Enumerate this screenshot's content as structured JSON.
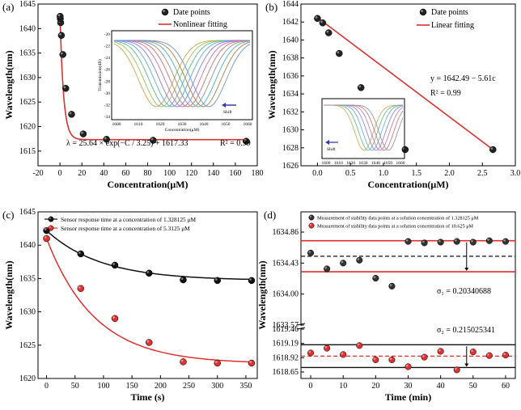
{
  "chart_data": [
    {
      "panel": "(a)",
      "type": "scatter",
      "xlabel": "Concentration(μM)",
      "ylabel": "Wavelength(nm)",
      "xlim": [
        -20,
        180
      ],
      "ylim": [
        1612,
        1645
      ],
      "xticks": [
        "-20",
        "0",
        "20",
        "40",
        "60",
        "80",
        "100",
        "120",
        "140",
        "160",
        "180"
      ],
      "yticks": [
        "1615",
        "1620",
        "1625",
        "1630",
        "1635",
        "1640",
        "1645"
      ],
      "legend": [
        "Date points",
        "Nonlinear fitting"
      ],
      "legend_position": "top-right",
      "series": [
        {
          "name": "Date points",
          "x": [
            0.66,
            1.33,
            2.66,
            5.31,
            10.6,
            21.25,
            42.5,
            85,
            170,
            0.33,
            0.17
          ],
          "y": [
            1641.2,
            1638.6,
            1634.7,
            1627.8,
            1622.5,
            1618.5,
            1617.4,
            1617.2,
            1617.0,
            1642.0,
            1642.5
          ]
        }
      ],
      "fit": {
        "model": "A*exp(-C/t)+y0",
        "A": 25.64,
        "t": 3.25,
        "y0": 1617.33
      },
      "annotations": [
        "λ = 25.64 × exp(−C / 3.25) + 1617.33",
        "R² = 0.99"
      ],
      "inset": {
        "xlabel": "Concentration(μM)",
        "ylabel": "Transmission(dB)",
        "xticks": [
          "1600",
          "1610",
          "1620",
          "1630",
          "1640",
          "1650",
          "1660"
        ],
        "yticks": [
          "-20",
          "-22",
          "-24",
          "-26",
          "-28",
          "-30",
          "-32",
          "-34"
        ],
        "note": "Shift"
      }
    },
    {
      "panel": "(b)",
      "type": "scatter",
      "xlabel": "Concentration(μM)",
      "ylabel": "Wavelength(nm)",
      "xlim": [
        -0.25,
        3.0
      ],
      "ylim": [
        1626,
        1644
      ],
      "xticks": [
        "0.0",
        "0.5",
        "1.0",
        "1.5",
        "2.0",
        "2.5",
        "3.0"
      ],
      "yticks": [
        "1626",
        "1628",
        "1630",
        "1632",
        "1634",
        "1636",
        "1638",
        "1640",
        "1642",
        "1644"
      ],
      "legend": [
        "Date points",
        "Linear fitting"
      ],
      "legend_position": "top-right",
      "series": [
        {
          "name": "Date points",
          "x": [
            0.0,
            0.08,
            0.17,
            0.33,
            0.66,
            1.33,
            2.66
          ],
          "y": [
            1642.4,
            1641.9,
            1640.8,
            1638.5,
            1634.7,
            1627.8,
            1627.8
          ]
        }
      ],
      "fit": {
        "model": "linear",
        "intercept": 1642.49,
        "slope": -5.61
      },
      "annotations": [
        "y = 1642.49 − 5.61c",
        "R² = 0.99"
      ],
      "inset": {
        "xticks": [
          "1600",
          "1610",
          "1620",
          "1630",
          "1640",
          "1650",
          "1660"
        ],
        "note": "Shift"
      }
    },
    {
      "panel": "(c)",
      "type": "line",
      "xlabel": "Time (s)",
      "ylabel": "Wavelength(nm)",
      "xlim": [
        -15,
        370
      ],
      "ylim": [
        1620,
        1645
      ],
      "xticks": [
        "0",
        "50",
        "100",
        "150",
        "200",
        "250",
        "300",
        "350"
      ],
      "yticks": [
        "1620",
        "1625",
        "1630",
        "1635",
        "1640",
        "1645"
      ],
      "legend_position": "top-right",
      "series": [
        {
          "name": "Sensor response time at a concentration of 1.328125 μM",
          "color": "#111111",
          "x": [
            0,
            60,
            120,
            180,
            240,
            300,
            360
          ],
          "y": [
            1642.2,
            1638.7,
            1637.0,
            1635.8,
            1634.8,
            1634.7,
            1634.7
          ]
        },
        {
          "name": "Sensor response time at a concentration of 5.3125 μM",
          "color": "#e03030",
          "x": [
            0,
            60,
            120,
            180,
            240,
            300,
            360
          ],
          "y": [
            1641.0,
            1633.5,
            1629.0,
            1625.4,
            1622.5,
            1622.3,
            1622.3
          ]
        }
      ]
    },
    {
      "panel": "(d)",
      "type": "scatter",
      "xlabel": "Time (min)",
      "ylabel": "Wavelength(nm)",
      "xlim": [
        -3,
        63
      ],
      "xticks": [
        "0",
        "10",
        "20",
        "30",
        "40",
        "50",
        "60"
      ],
      "yticks_upper": [
        "1633.57",
        "1634.00",
        "1634.43",
        "1634.86"
      ],
      "yticks_lower": [
        "1618.65",
        "1618.92",
        "1619.19",
        "1619.46"
      ],
      "legend_position": "top",
      "series": [
        {
          "name": "Measurement of stability data points at a solution concentration of 1.328125 μM",
          "color": "#333333",
          "x": [
            0,
            5,
            10,
            15,
            20,
            25,
            30,
            35,
            40,
            45,
            50,
            55,
            60
          ],
          "y": [
            1634.57,
            1634.35,
            1634.43,
            1634.47,
            1634.22,
            1634.11,
            1634.73,
            1634.71,
            1634.72,
            1634.73,
            1634.72,
            1634.74,
            1634.73
          ]
        },
        {
          "name": "Measurement of stability data points at a solution concentration of 10.625 μM",
          "color": "#e03030",
          "x": [
            0,
            5,
            10,
            15,
            20,
            25,
            30,
            35,
            40,
            45,
            50,
            55,
            60
          ],
          "y": [
            1619.01,
            1619.1,
            1618.98,
            1619.15,
            1618.88,
            1618.88,
            1618.75,
            1618.93,
            1619.04,
            1618.69,
            1619.03,
            1618.96,
            1618.97
          ]
        }
      ],
      "upper_lines": {
        "mean": 1634.525,
        "upper": 1634.74,
        "lower": 1634.31
      },
      "lower_lines": {
        "mean": 1618.95,
        "upper": 1619.165,
        "lower": 1618.735
      },
      "annotations": [
        "σ₁ = 0.20340688",
        "σ₂ = 0.215025341"
      ]
    }
  ]
}
